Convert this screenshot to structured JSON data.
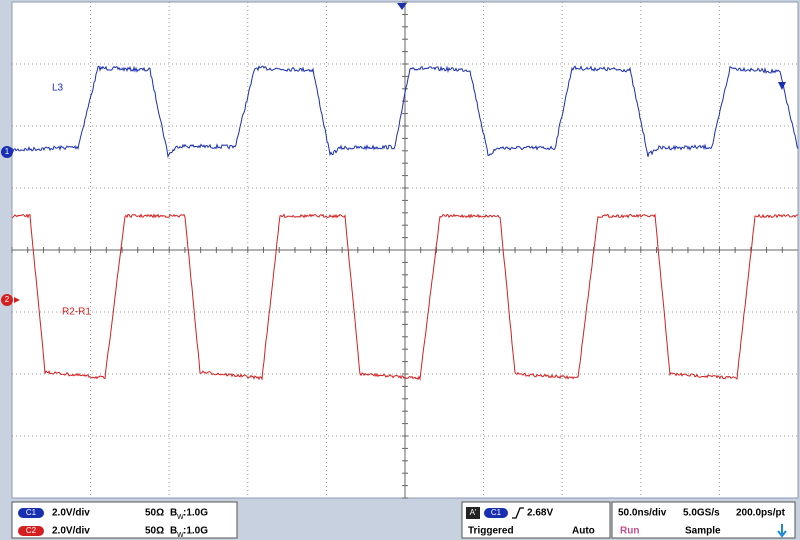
{
  "traces": [
    {
      "marker": "1",
      "label": "L3"
    },
    {
      "marker": "2",
      "label": "R2-R1"
    }
  ],
  "channels": [
    {
      "name": "C1",
      "scale": "2.0V/div",
      "impedance": "50Ω",
      "bw_symbol": "B",
      "bw_sub": "W",
      "bandwidth": ":1.0G"
    },
    {
      "name": "C2",
      "scale": "2.0V/div",
      "impedance": "50Ω",
      "bw_symbol": "B",
      "bw_sub": "W",
      "bandwidth": ":1.0G"
    }
  ],
  "trigger": {
    "prefix": "A'",
    "source": "C1",
    "level": "2.68V",
    "status": "Triggered",
    "mode": "Auto"
  },
  "timebase": {
    "scale": "50.0ns/div",
    "rate": "5.0GS/s",
    "resolution": "200.0ps/pt",
    "state": "Run",
    "acquisition": "Sample"
  }
}
